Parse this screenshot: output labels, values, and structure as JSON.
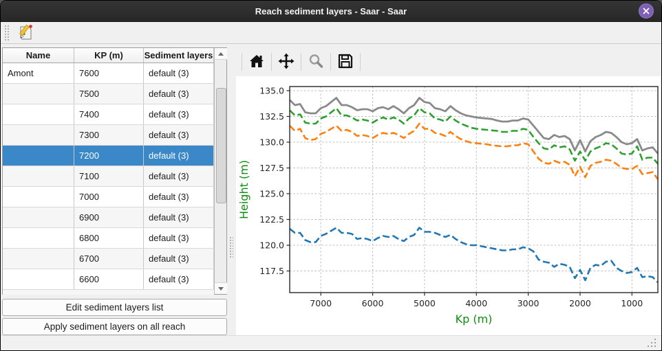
{
  "window": {
    "title": "Reach sediment layers - Saar - Saar"
  },
  "titlebar_icons": {
    "close": "x-icon"
  },
  "toolbar": {
    "edit_icon": "edit-sediment-icon"
  },
  "table": {
    "columns": [
      "Name",
      "KP (m)",
      "Sediment layers"
    ],
    "selected_index": 4,
    "rows": [
      {
        "name": "Amont",
        "kp": "7600",
        "layers": "default (3)"
      },
      {
        "name": "",
        "kp": "7500",
        "layers": "default (3)"
      },
      {
        "name": "",
        "kp": "7400",
        "layers": "default (3)"
      },
      {
        "name": "",
        "kp": "7300",
        "layers": "default (3)"
      },
      {
        "name": "",
        "kp": "7200",
        "layers": "default (3)"
      },
      {
        "name": "",
        "kp": "7100",
        "layers": "default (3)"
      },
      {
        "name": "",
        "kp": "7000",
        "layers": "default (3)"
      },
      {
        "name": "",
        "kp": "6900",
        "layers": "default (3)"
      },
      {
        "name": "",
        "kp": "6800",
        "layers": "default (3)"
      },
      {
        "name": "",
        "kp": "6700",
        "layers": "default (3)"
      },
      {
        "name": "",
        "kp": "6600",
        "layers": "default (3)"
      }
    ]
  },
  "buttons": {
    "edit": "Edit sediment layers list",
    "apply": "Apply sediment layers on all reach"
  },
  "mpl_toolbar": {
    "icons": [
      "home-icon",
      "pan-icon",
      "zoom-icon",
      "save-icon"
    ]
  },
  "colors": {
    "selection_blue": "#3a88c8",
    "titlebar": "#2c2c2c",
    "close_purple": "#7e5fb5",
    "axis_label_green": "#0c8f0c",
    "line_gray": "#8a8a8a",
    "line_green": "#2ca02c",
    "line_orange": "#ff7f0e",
    "line_blue": "#1f77b4"
  },
  "chart_data": {
    "type": "line",
    "xlabel": "Kp (m)",
    "ylabel": "Height (m)",
    "x_reversed": true,
    "xlim": [
      7600,
      500
    ],
    "ylim": [
      115.4,
      135.4
    ],
    "xticks": [
      7000,
      6000,
      5000,
      4000,
      3000,
      2000,
      1000
    ],
    "yticks": [
      135.0,
      132.5,
      130.0,
      127.5,
      125.0,
      122.5,
      120.0,
      117.5
    ],
    "grid": true,
    "legend": "none",
    "x": [
      7600,
      7500,
      7400,
      7300,
      7200,
      7100,
      7000,
      6900,
      6800,
      6700,
      6600,
      6500,
      6400,
      6300,
      6200,
      6100,
      6000,
      5900,
      5800,
      5700,
      5600,
      5500,
      5400,
      5300,
      5200,
      5100,
      5000,
      4900,
      4800,
      4700,
      4600,
      4500,
      4400,
      4300,
      4200,
      4100,
      4000,
      3900,
      3800,
      3700,
      3600,
      3500,
      3400,
      3300,
      3200,
      3100,
      3000,
      2900,
      2800,
      2700,
      2600,
      2500,
      2400,
      2300,
      2200,
      2100,
      2000,
      1900,
      1800,
      1700,
      1600,
      1500,
      1400,
      1300,
      1200,
      1100,
      1000,
      900,
      800,
      700,
      600,
      500
    ],
    "series": [
      {
        "name": "layer-top-gray",
        "color": "#8a8a8a",
        "style": "solid",
        "width": 2.8,
        "values": [
          134.1,
          133.6,
          133.7,
          132.9,
          132.8,
          132.8,
          133.3,
          133.5,
          133.9,
          134.3,
          133.6,
          133.6,
          133.4,
          133.1,
          133.2,
          133.2,
          133.0,
          133.3,
          133.4,
          133.2,
          133.5,
          133.2,
          132.8,
          133.3,
          133.6,
          134.3,
          133.9,
          133.8,
          133.3,
          133.2,
          133.0,
          133.5,
          133.1,
          132.8,
          132.6,
          132.5,
          132.4,
          132.35,
          132.3,
          132.25,
          132.1,
          132.0,
          132.0,
          132.1,
          132.1,
          132.3,
          132.2,
          131.6,
          131.0,
          130.4,
          130.3,
          130.7,
          130.5,
          130.6,
          130.3,
          129.2,
          130.2,
          129.1,
          130.1,
          130.5,
          130.7,
          131.0,
          130.9,
          130.5,
          130.0,
          129.8,
          129.9,
          130.3,
          129.2,
          129.4,
          129.5,
          128.9
        ]
      },
      {
        "name": "layer-green",
        "color": "#2ca02c",
        "style": "dashed",
        "width": 2.6,
        "values": [
          133.1,
          132.6,
          132.7,
          131.9,
          131.8,
          131.8,
          132.3,
          132.5,
          132.9,
          133.3,
          132.6,
          132.6,
          132.4,
          132.1,
          132.2,
          132.1,
          131.9,
          132.2,
          132.4,
          132.2,
          132.4,
          132.2,
          131.8,
          132.3,
          132.6,
          133.3,
          132.9,
          132.8,
          132.3,
          132.2,
          132.0,
          132.5,
          132.1,
          131.8,
          131.6,
          131.4,
          131.3,
          131.25,
          131.2,
          131.15,
          131.1,
          131.0,
          131.0,
          131.1,
          131.1,
          131.3,
          131.2,
          130.5,
          129.9,
          129.4,
          129.3,
          129.7,
          129.5,
          129.6,
          129.3,
          128.2,
          129.1,
          128.2,
          129.1,
          129.4,
          129.6,
          129.9,
          129.8,
          129.4,
          128.9,
          128.8,
          128.9,
          129.6,
          128.3,
          128.5,
          128.5,
          127.9
        ]
      },
      {
        "name": "layer-orange",
        "color": "#ff7f0e",
        "style": "dashed",
        "width": 2.6,
        "values": [
          131.6,
          131.1,
          131.3,
          130.4,
          130.2,
          130.3,
          130.8,
          131.0,
          131.3,
          131.6,
          131.1,
          131.2,
          131.0,
          130.6,
          130.7,
          130.6,
          130.4,
          130.7,
          130.9,
          130.8,
          130.9,
          130.7,
          130.4,
          130.8,
          131.1,
          131.8,
          131.3,
          131.3,
          130.9,
          130.8,
          130.6,
          131.0,
          130.6,
          130.3,
          130.1,
          129.95,
          129.9,
          129.85,
          129.8,
          129.7,
          129.65,
          129.6,
          129.6,
          129.7,
          129.7,
          129.9,
          129.8,
          129.1,
          128.4,
          128.0,
          127.9,
          128.2,
          128.0,
          128.1,
          127.8,
          126.7,
          127.6,
          126.6,
          127.7,
          128.0,
          128.1,
          128.3,
          128.2,
          127.9,
          127.5,
          127.4,
          127.4,
          127.7,
          126.9,
          127.0,
          127.1,
          126.4
        ]
      },
      {
        "name": "layer-bottom-blue",
        "color": "#1f77b4",
        "style": "dashed",
        "width": 2.6,
        "values": [
          121.6,
          121.2,
          121.2,
          120.5,
          120.3,
          120.3,
          120.9,
          121.1,
          121.4,
          121.7,
          121.2,
          121.2,
          121.1,
          120.6,
          120.7,
          120.6,
          120.4,
          120.7,
          120.9,
          120.8,
          120.9,
          120.6,
          120.4,
          120.8,
          121.0,
          121.7,
          121.3,
          121.3,
          121.2,
          121.0,
          120.8,
          121.0,
          120.6,
          120.3,
          120.1,
          120.0,
          120.0,
          119.9,
          119.8,
          119.7,
          119.6,
          119.5,
          119.5,
          119.6,
          119.6,
          119.8,
          119.7,
          119.4,
          118.6,
          118.4,
          118.3,
          117.9,
          118.2,
          118.1,
          117.9,
          116.8,
          117.6,
          116.6,
          117.8,
          118.1,
          118.0,
          118.4,
          118.5,
          117.8,
          117.5,
          117.3,
          117.4,
          117.8,
          116.9,
          117.0,
          116.9,
          116.4
        ]
      }
    ]
  }
}
